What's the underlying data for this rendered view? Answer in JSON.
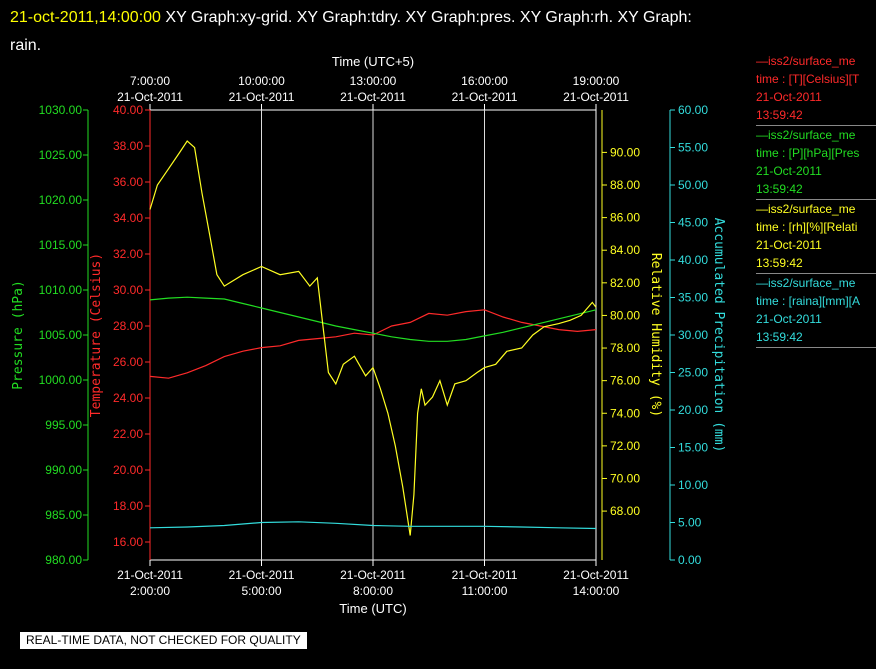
{
  "header": {
    "timestamp": "21-oct-2011,14:00:00",
    "graphs": "XY Graph:xy-grid.  XY Graph:tdry.  XY Graph:pres.  XY Graph:rh.  XY Graph:",
    "graphs_cont": "rain."
  },
  "legend": [
    {
      "name": "—iss2/surface_me",
      "line2": "time : [T][Celsius][T",
      "date": "21-Oct-2011",
      "time": "13:59:42",
      "color": "#ff2a2a"
    },
    {
      "name": "—iss2/surface_me",
      "line2": "time : [P][hPa][Pres",
      "date": "21-Oct-2011",
      "time": "13:59:42",
      "color": "#22dd22"
    },
    {
      "name": "—iss2/surface_me",
      "line2": "time : [rh][%][Relati",
      "date": "21-Oct-2011",
      "time": "13:59:42",
      "color": "#ffff22"
    },
    {
      "name": "—iss2/surface_me",
      "line2": "time : [raina][mm][A",
      "date": "21-Oct-2011",
      "time": "13:59:42",
      "color": "#33dddd"
    }
  ],
  "disclaimer": "REAL-TIME DATA, NOT CHECKED FOR QUALITY",
  "chart_data": {
    "type": "line",
    "xlabel_bottom": "Time (UTC)",
    "xlabel_top": "Time (UTC+5)",
    "x_ticks_bottom": [
      {
        "date": "21-Oct-2011",
        "time": "2:00:00",
        "x": 2
      },
      {
        "date": "21-Oct-2011",
        "time": "5:00:00",
        "x": 5
      },
      {
        "date": "21-Oct-2011",
        "time": "8:00:00",
        "x": 8
      },
      {
        "date": "21-Oct-2011",
        "time": "11:00:00",
        "x": 11
      },
      {
        "date": "21-Oct-2011",
        "time": "14:00:00",
        "x": 14
      }
    ],
    "x_ticks_top": [
      {
        "date": "21-Oct-2011",
        "time": "7:00:00",
        "x": 2
      },
      {
        "date": "21-Oct-2011",
        "time": "10:00:00",
        "x": 5
      },
      {
        "date": "21-Oct-2011",
        "time": "13:00:00",
        "x": 8
      },
      {
        "date": "21-Oct-2011",
        "time": "16:00:00",
        "x": 11
      },
      {
        "date": "21-Oct-2011",
        "time": "19:00:00",
        "x": 14
      }
    ],
    "xlim": [
      2,
      14
    ],
    "grid": "vertical",
    "axes": {
      "pressure": {
        "label": "Pressure (hPa)",
        "lim": [
          980,
          1030
        ],
        "ticks": [
          "980.00",
          "985.00",
          "990.00",
          "995.00",
          "1000.00",
          "1005.00",
          "1010.00",
          "1015.00",
          "1020.00",
          "1025.00",
          "1030.00"
        ],
        "color": "#22dd22"
      },
      "temperature": {
        "label": "Temperature (Celsius)",
        "lim": [
          15,
          40
        ],
        "ticks": [
          "16.00",
          "18.00",
          "20.00",
          "22.00",
          "24.00",
          "26.00",
          "28.00",
          "30.00",
          "32.00",
          "34.00",
          "36.00",
          "38.00",
          "40.00"
        ],
        "color": "#ff2a2a"
      },
      "humidity": {
        "label": "Relative Humidity (%)",
        "lim": [
          65,
          92.6
        ],
        "ticks": [
          "68.00",
          "70.00",
          "72.00",
          "74.00",
          "76.00",
          "78.00",
          "80.00",
          "82.00",
          "84.00",
          "86.00",
          "88.00",
          "90.00"
        ],
        "color": "#ffff22"
      },
      "precip": {
        "label": "Accumulated Precipitation (mm)",
        "lim": [
          0,
          60
        ],
        "ticks": [
          "0.00",
          "5.00",
          "10.00",
          "15.00",
          "20.00",
          "25.00",
          "30.00",
          "35.00",
          "40.00",
          "45.00",
          "50.00",
          "55.00",
          "60.00"
        ],
        "color": "#33dddd"
      }
    },
    "series": [
      {
        "name": "Temperature",
        "axis": "temperature",
        "color": "#ff2a2a",
        "x": [
          2.0,
          2.5,
          3.0,
          3.5,
          4.0,
          4.5,
          5.0,
          5.5,
          6.0,
          6.5,
          7.0,
          7.5,
          8.0,
          8.5,
          9.0,
          9.5,
          10.0,
          10.5,
          11.0,
          11.5,
          12.0,
          12.5,
          13.0,
          13.5,
          14.0
        ],
        "y": [
          25.2,
          25.1,
          25.4,
          25.8,
          26.3,
          26.6,
          26.8,
          26.9,
          27.2,
          27.3,
          27.4,
          27.6,
          27.5,
          28.0,
          28.2,
          28.7,
          28.6,
          28.8,
          28.9,
          28.5,
          28.2,
          28.0,
          27.8,
          27.7,
          27.8
        ]
      },
      {
        "name": "Pressure",
        "axis": "pressure",
        "color": "#22dd22",
        "x": [
          2.0,
          2.5,
          3.0,
          3.5,
          4.0,
          4.5,
          5.0,
          5.5,
          6.0,
          6.5,
          7.0,
          7.5,
          8.0,
          8.5,
          9.0,
          9.5,
          10.0,
          10.5,
          11.0,
          11.5,
          12.0,
          12.5,
          13.0,
          13.5,
          14.0
        ],
        "y": [
          1008.9,
          1009.1,
          1009.2,
          1009.1,
          1009.0,
          1008.5,
          1008.0,
          1007.5,
          1007.0,
          1006.5,
          1006.0,
          1005.6,
          1005.2,
          1004.8,
          1004.5,
          1004.3,
          1004.3,
          1004.5,
          1004.9,
          1005.3,
          1005.8,
          1006.3,
          1006.8,
          1007.3,
          1007.8
        ]
      },
      {
        "name": "Relative Humidity",
        "axis": "humidity",
        "color": "#ffff22",
        "x": [
          2.0,
          2.2,
          2.5,
          2.8,
          3.0,
          3.2,
          3.4,
          3.6,
          3.8,
          4.0,
          4.5,
          5.0,
          5.5,
          6.0,
          6.3,
          6.5,
          6.8,
          7.0,
          7.2,
          7.5,
          7.8,
          8.0,
          8.2,
          8.4,
          8.6,
          8.8,
          9.0,
          9.1,
          9.2,
          9.3,
          9.4,
          9.6,
          9.8,
          10.0,
          10.2,
          10.5,
          10.8,
          11.0,
          11.3,
          11.6,
          12.0,
          12.3,
          12.6,
          13.0,
          13.3,
          13.6,
          13.9,
          14.0
        ],
        "y": [
          86.5,
          88.0,
          89.0,
          90.0,
          90.7,
          90.3,
          87.5,
          85.0,
          82.5,
          81.8,
          82.5,
          83.0,
          82.5,
          82.7,
          81.8,
          82.3,
          76.5,
          75.8,
          77.0,
          77.5,
          76.3,
          76.8,
          75.5,
          74.0,
          72.0,
          69.5,
          66.5,
          69.0,
          74.0,
          75.5,
          74.5,
          75.0,
          76.0,
          74.5,
          75.8,
          76.0,
          76.5,
          76.8,
          77.0,
          77.8,
          78.0,
          78.8,
          79.3,
          79.5,
          79.7,
          80.0,
          80.8,
          80.5
        ]
      },
      {
        "name": "Accumulated Precipitation",
        "axis": "precip",
        "color": "#33dddd",
        "x": [
          2.0,
          3.0,
          4.0,
          5.0,
          6.0,
          7.0,
          8.0,
          9.0,
          10.0,
          11.0,
          12.0,
          13.0,
          14.0
        ],
        "y": [
          4.3,
          4.4,
          4.6,
          5.0,
          5.1,
          4.9,
          4.6,
          4.5,
          4.5,
          4.5,
          4.4,
          4.3,
          4.2
        ]
      }
    ]
  }
}
